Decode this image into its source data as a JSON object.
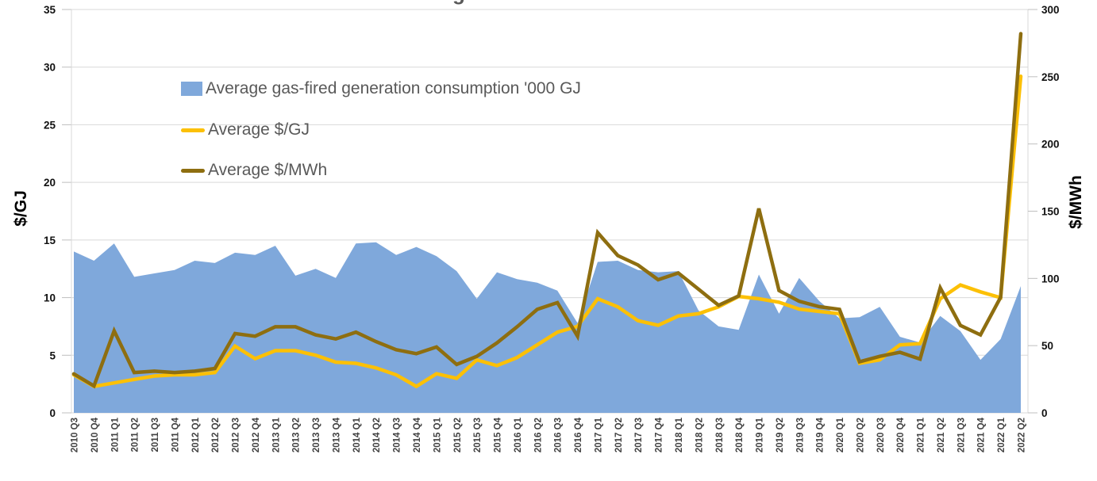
{
  "page": {
    "title_fragment": "g"
  },
  "legend": {
    "position": "inside-top-left"
  },
  "chart_data": {
    "type": "area",
    "subtype": "combo-area-line-dual-axis",
    "grid": true,
    "gridline_color": "#d9d9d9",
    "tick_color": "#bfbfbf",
    "x_tick_label_color": "#404040",
    "y_tick_label_color": "#111111",
    "legend_position": "inside-top-left",
    "categories": [
      "2010 Q3",
      "2010 Q4",
      "2011 Q1",
      "2011 Q2",
      "2011 Q3",
      "2011 Q4",
      "2012 Q1",
      "2012 Q2",
      "2012 Q3",
      "2012 Q4",
      "2013 Q1",
      "2013 Q2",
      "2013 Q3",
      "2013 Q4",
      "2014 Q1",
      "2014 Q2",
      "2014 Q3",
      "2014 Q4",
      "2015 Q1",
      "2015 Q2",
      "2015 Q3",
      "2015 Q4",
      "2016 Q1",
      "2016 Q2",
      "2016 Q3",
      "2016 Q4",
      "2017 Q1",
      "2017 Q2",
      "2017 Q3",
      "2017 Q4",
      "2018 Q1",
      "2018 Q2",
      "2018 Q3",
      "2018 Q4",
      "2019 Q1",
      "2019 Q2",
      "2019 Q3",
      "2019 Q4",
      "2020 Q1",
      "2020 Q2",
      "2020 Q3",
      "2020 Q4",
      "2021 Q1",
      "2021 Q2",
      "2021 Q3",
      "2021 Q4",
      "2022 Q1",
      "2022 Q2"
    ],
    "left_axis": {
      "title": "$/GJ",
      "min": 0,
      "max": 35,
      "tick_step": 5,
      "tick_labels": [
        "0",
        "5",
        "10",
        "15",
        "20",
        "25",
        "30",
        "35"
      ]
    },
    "right_axis": {
      "title": "$/MWh",
      "min": 0,
      "max": 300,
      "tick_step": 50,
      "tick_labels": [
        "0",
        "50",
        "100",
        "150",
        "200",
        "250",
        "300"
      ]
    },
    "series": [
      {
        "name": "Average gas-fired generation consumption '000 GJ",
        "type": "area",
        "axis": "left",
        "color": "#7FA8DB",
        "values": [
          14.0,
          13.2,
          14.7,
          11.8,
          12.1,
          12.4,
          13.2,
          13.0,
          13.9,
          13.7,
          14.5,
          11.9,
          12.5,
          11.7,
          14.7,
          14.8,
          13.7,
          14.4,
          13.6,
          12.3,
          9.9,
          12.2,
          11.6,
          11.3,
          10.6,
          7.8,
          13.1,
          13.2,
          12.4,
          12.2,
          12.3,
          8.9,
          7.5,
          7.2,
          12.0,
          8.6,
          11.7,
          9.7,
          8.2,
          8.3,
          9.2,
          6.6,
          6.1,
          8.4,
          7.1,
          4.6,
          6.4,
          11.0
        ]
      },
      {
        "name": "Average $/GJ",
        "type": "line",
        "axis": "left",
        "color": "#FCC006",
        "values": [
          3.3,
          2.3,
          2.6,
          2.9,
          3.2,
          3.3,
          3.3,
          3.5,
          5.8,
          4.7,
          5.4,
          5.4,
          5.0,
          4.4,
          4.3,
          3.9,
          3.3,
          2.3,
          3.4,
          3.0,
          4.6,
          4.1,
          4.8,
          5.9,
          7.0,
          7.5,
          9.9,
          9.2,
          8.0,
          7.6,
          8.4,
          8.6,
          9.2,
          10.1,
          9.9,
          9.6,
          9.0,
          8.8,
          8.6,
          4.3,
          4.6,
          5.9,
          6.0,
          9.9,
          11.1,
          10.5,
          10.0,
          29.2
        ]
      },
      {
        "name": "Average $/MWh",
        "type": "line",
        "axis": "right",
        "color": "#8E6E10",
        "values": [
          29,
          20,
          61,
          30,
          31,
          30,
          31,
          33,
          59,
          57,
          64,
          64,
          58,
          55,
          60,
          53,
          47,
          44,
          49,
          36,
          42,
          52,
          64,
          77,
          82,
          57,
          134,
          117,
          110,
          99,
          104,
          92,
          80,
          87,
          152,
          91,
          83,
          79,
          77,
          38,
          42,
          45,
          40,
          93,
          65,
          58,
          86,
          282
        ]
      }
    ]
  }
}
